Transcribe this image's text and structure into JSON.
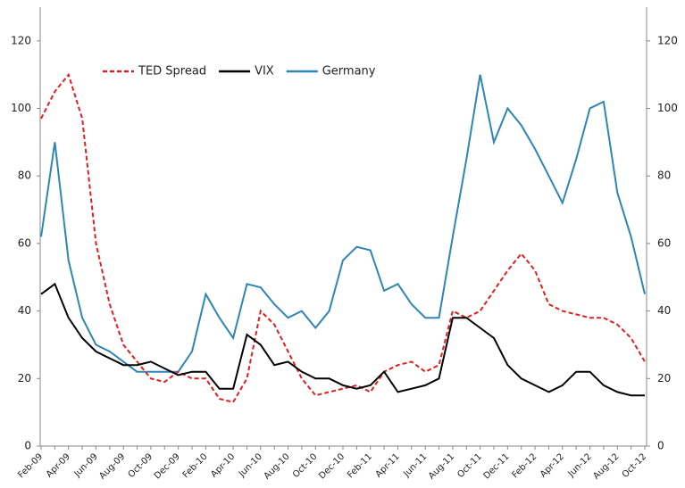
{
  "chart_data": {
    "type": "line",
    "categories": [
      "Feb-09",
      null,
      "Apr-09",
      null,
      "Jun-09",
      null,
      "Aug-09",
      null,
      "Oct-09",
      null,
      "Dec-09",
      null,
      "Feb-10",
      null,
      "Apr-10",
      null,
      "Jun-10",
      null,
      "Aug-10",
      null,
      "Oct-10",
      null,
      "Dec-10",
      null,
      "Feb-11",
      null,
      "Apr-11",
      null,
      "Jun-11",
      null,
      "Aug-11",
      null,
      "Oct-11",
      null,
      "Dec-11",
      null,
      "Feb-12",
      null,
      "Apr-12",
      null,
      "Jun-12",
      null,
      "Aug-12",
      null,
      "Oct-12"
    ],
    "series": [
      {
        "name": "TED Spread",
        "color": "#e02020",
        "style": "dashed",
        "values": [
          97,
          105,
          110,
          97,
          60,
          42,
          30,
          25,
          20,
          19,
          22,
          20,
          20,
          14,
          13,
          20,
          40,
          36,
          28,
          20,
          15,
          16,
          17,
          18,
          16,
          22,
          24,
          25,
          22,
          24,
          40,
          38,
          40,
          46,
          52,
          57,
          52,
          42,
          40,
          39,
          38,
          38,
          36,
          32,
          25
        ]
      },
      {
        "name": "VIX",
        "color": "#000000",
        "style": "solid",
        "values": [
          45,
          48,
          38,
          32,
          28,
          26,
          24,
          24,
          25,
          23,
          21,
          22,
          22,
          17,
          17,
          33,
          30,
          24,
          25,
          22,
          20,
          20,
          18,
          17,
          18,
          22,
          16,
          17,
          18,
          20,
          38,
          38,
          35,
          32,
          24,
          20,
          18,
          16,
          18,
          22,
          22,
          18,
          16,
          15,
          15
        ]
      },
      {
        "name": "Germany",
        "color": "#2e86b4",
        "style": "solid",
        "values": [
          62,
          90,
          55,
          38,
          30,
          28,
          25,
          22,
          22,
          22,
          22,
          28,
          45,
          38,
          32,
          48,
          47,
          42,
          38,
          40,
          35,
          40,
          55,
          59,
          58,
          46,
          48,
          42,
          38,
          38,
          62,
          85,
          110,
          90,
          100,
          95,
          88,
          80,
          72,
          85,
          100,
          102,
          75,
          62,
          45
        ]
      }
    ],
    "ylim": [
      0,
      130
    ],
    "yticks": [
      0,
      20,
      40,
      60,
      80,
      100,
      120
    ],
    "y2lim": [
      0,
      130
    ],
    "y2ticks": [
      0,
      20,
      40,
      60,
      80,
      100,
      120
    ],
    "legend": "top-left"
  }
}
